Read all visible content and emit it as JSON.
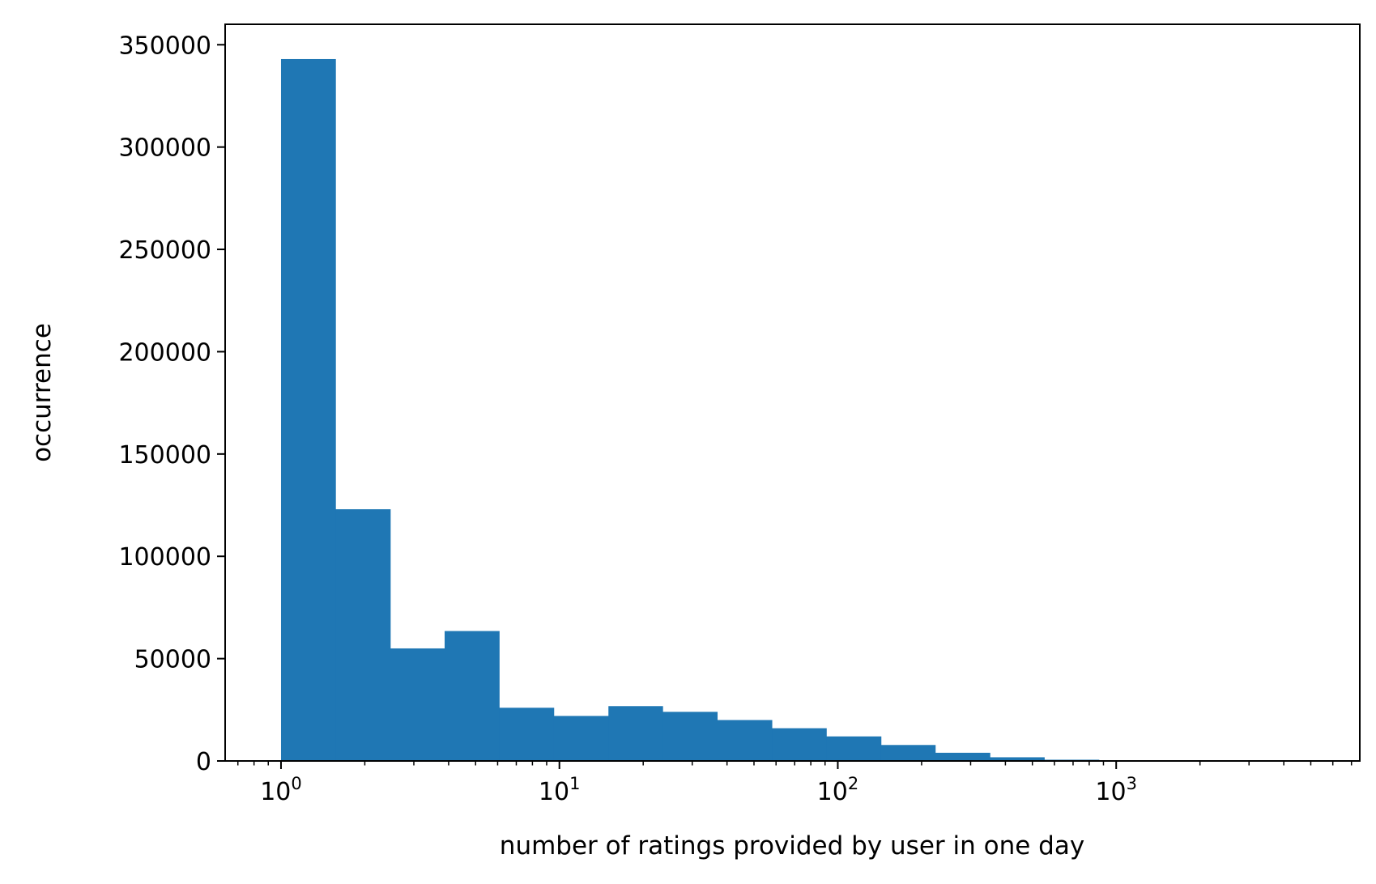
{
  "chart_data": {
    "type": "bar",
    "title": "",
    "xlabel": "number of ratings provided by user in one day",
    "ylabel": "occurrence",
    "xscale": "log",
    "xlim": [
      0.63,
      7500
    ],
    "ylim": [
      0,
      360000
    ],
    "grid": false,
    "color": "#1f77b4",
    "x_ticks": [
      {
        "base": "10",
        "exp": "0",
        "value": 1
      },
      {
        "base": "10",
        "exp": "1",
        "value": 10
      },
      {
        "base": "10",
        "exp": "2",
        "value": 100
      },
      {
        "base": "10",
        "exp": "3",
        "value": 1000
      }
    ],
    "y_ticks": [
      {
        "label": "0",
        "value": 0
      },
      {
        "label": "50000",
        "value": 50000
      },
      {
        "label": "100000",
        "value": 100000
      },
      {
        "label": "150000",
        "value": 150000
      },
      {
        "label": "200000",
        "value": 200000
      },
      {
        "label": "250000",
        "value": 250000
      },
      {
        "label": "300000",
        "value": 300000
      },
      {
        "label": "350000",
        "value": 350000
      }
    ],
    "bins": [
      {
        "x0": 1,
        "x1": 1.57,
        "value": 343000
      },
      {
        "x0": 1.57,
        "x1": 2.47,
        "value": 123000
      },
      {
        "x0": 2.47,
        "x1": 3.87,
        "value": 55000
      },
      {
        "x0": 3.87,
        "x1": 6.08,
        "value": 63500
      },
      {
        "x0": 6.08,
        "x1": 9.55,
        "value": 26000
      },
      {
        "x0": 9.55,
        "x1": 15.0,
        "value": 22000
      },
      {
        "x0": 15.0,
        "x1": 23.5,
        "value": 26800
      },
      {
        "x0": 23.5,
        "x1": 36.9,
        "value": 24000
      },
      {
        "x0": 36.9,
        "x1": 58.0,
        "value": 20000
      },
      {
        "x0": 58.0,
        "x1": 91.0,
        "value": 16000
      },
      {
        "x0": 91.0,
        "x1": 143,
        "value": 12000
      },
      {
        "x0": 143,
        "x1": 224,
        "value": 7800
      },
      {
        "x0": 224,
        "x1": 352,
        "value": 4000
      },
      {
        "x0": 352,
        "x1": 552,
        "value": 1800
      },
      {
        "x0": 552,
        "x1": 867,
        "value": 600
      },
      {
        "x0": 867,
        "x1": 1361,
        "value": 200
      },
      {
        "x0": 1361,
        "x1": 2137,
        "value": 80
      },
      {
        "x0": 2137,
        "x1": 3355,
        "value": 30
      },
      {
        "x0": 3355,
        "x1": 5269,
        "value": 10
      }
    ]
  }
}
